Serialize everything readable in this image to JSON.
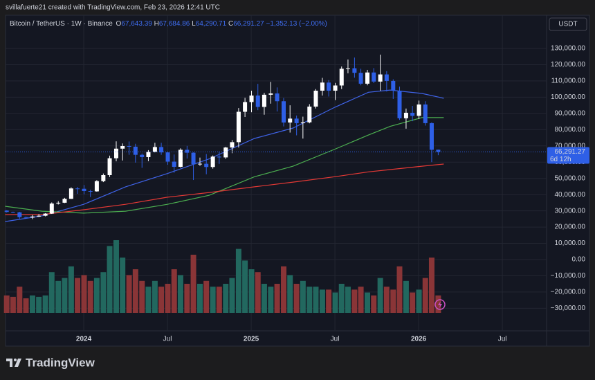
{
  "chart_data": {
    "type": "candlestick",
    "author": "svillafuerte21 created with TradingView.com, Feb 23, 2026 12:41 UTC",
    "symbol": "Bitcoin / TetherUS · 1W · Binance",
    "ohlc_header": {
      "o": "O",
      "open": "67,643.39",
      "h": "H",
      "high": "67,684.86",
      "l": "L",
      "low": "64,290.71",
      "c": "C",
      "close": "66,291.27",
      "change": "−1,352.13 (−2.00%)"
    },
    "currency": "USDT",
    "last_price_label": "66,291.27",
    "countdown": "6d 12h",
    "brand": "TradingView",
    "xlim": [
      2023.533,
      2026.764
    ],
    "xticks": [
      {
        "value": 2024,
        "label": "2024"
      },
      {
        "value": 2024.5,
        "label": "Jul"
      },
      {
        "value": 2025,
        "label": "2025"
      },
      {
        "value": 2025.5,
        "label": "Jul"
      },
      {
        "value": 2026,
        "label": "2026"
      },
      {
        "value": 2026.5,
        "label": "Jul"
      }
    ],
    "ylim": [
      -43900,
      150460
    ],
    "yticks": [
      {
        "value": 130000,
        "label": "130,000.00"
      },
      {
        "value": 120000,
        "label": "120,000.00"
      },
      {
        "value": 110000,
        "label": "110,000.00"
      },
      {
        "value": 100000,
        "label": "100,000.00"
      },
      {
        "value": 90000,
        "label": "90,000.00"
      },
      {
        "value": 80000,
        "label": "80,000.00"
      },
      {
        "value": 70000,
        "label": "70,000.00"
      },
      {
        "value": 60000,
        "label": "60,000.00"
      },
      {
        "value": 50000,
        "label": "50,000.00"
      },
      {
        "value": 40000,
        "label": "40,000.00"
      },
      {
        "value": 30000,
        "label": "30,000.00"
      },
      {
        "value": 20000,
        "label": "20,000.00"
      },
      {
        "value": 10000,
        "label": "10,000.00"
      },
      {
        "value": 0,
        "label": "0.00"
      },
      {
        "value": -10000,
        "label": "−10,000.00"
      },
      {
        "value": -20000,
        "label": "−20,000.00"
      },
      {
        "value": -30000,
        "label": "−30,000.00"
      }
    ],
    "grid": true,
    "up_color": "#ffffff",
    "down_color": "#2e5fe6",
    "volume_up_color": "#22685f",
    "volume_down_color": "#8a3537",
    "volume_ylim": [
      0,
      250000
    ],
    "x": [
      2023.54,
      2023.578,
      2023.617,
      2023.655,
      2023.694,
      2023.732,
      2023.771,
      2023.809,
      2023.848,
      2023.886,
      2023.925,
      2023.963,
      2024.002,
      2024.04,
      2024.078,
      2024.117,
      2024.155,
      2024.194,
      2024.232,
      2024.271,
      2024.309,
      2024.348,
      2024.386,
      2024.425,
      2024.463,
      2024.502,
      2024.54,
      2024.578,
      2024.617,
      2024.655,
      2024.694,
      2024.732,
      2024.771,
      2024.809,
      2024.848,
      2024.886,
      2024.925,
      2024.963,
      2025.002,
      2025.04,
      2025.078,
      2025.117,
      2025.155,
      2025.194,
      2025.232,
      2025.271,
      2025.309,
      2025.348,
      2025.386,
      2025.425,
      2025.463,
      2025.502,
      2025.54,
      2025.578,
      2025.617,
      2025.655,
      2025.694,
      2025.732,
      2025.771,
      2025.809,
      2025.848,
      2025.886,
      2025.925,
      2025.963,
      2026.002,
      2026.04,
      2026.078,
      2026.117
    ],
    "open": [
      30200,
      29300,
      29100,
      26100,
      25900,
      26500,
      27000,
      28300,
      34500,
      35000,
      37400,
      43800,
      43600,
      42200,
      42000,
      48300,
      52000,
      62400,
      68300,
      69900,
      69500,
      64500,
      63100,
      66300,
      69300,
      66000,
      60300,
      57100,
      67600,
      65800,
      58700,
      59000,
      57000,
      63400,
      62900,
      69000,
      72300,
      91000,
      97000,
      101000,
      94000,
      101500,
      102300,
      97500,
      84400,
      86800,
      84000,
      84500,
      94200,
      104000,
      109000,
      104000,
      107200,
      117500,
      117800,
      115000,
      108300,
      115200,
      109600,
      114000,
      110000,
      104000,
      87000,
      90400,
      88500,
      95500,
      84000,
      67643.39
    ],
    "high": [
      30400,
      29500,
      29400,
      26500,
      27400,
      28000,
      28600,
      35200,
      36000,
      38000,
      44500,
      44700,
      45900,
      43000,
      48900,
      53000,
      64000,
      72800,
      71500,
      72700,
      71300,
      65300,
      67400,
      71900,
      71900,
      66500,
      64700,
      68500,
      70000,
      66000,
      62800,
      65000,
      64100,
      66500,
      69400,
      73600,
      93300,
      99600,
      104000,
      108200,
      102700,
      109400,
      106000,
      99500,
      95000,
      88700,
      88000,
      95700,
      105000,
      111900,
      110500,
      108800,
      118900,
      123200,
      124400,
      117500,
      116800,
      117900,
      126200,
      116000,
      111000,
      106500,
      93000,
      94600,
      97900,
      97500,
      84500,
      67684.86
    ],
    "low": [
      29000,
      28700,
      25200,
      25500,
      24900,
      26200,
      26600,
      28100,
      33900,
      34800,
      37300,
      40500,
      40200,
      38500,
      41800,
      47700,
      50800,
      60500,
      61000,
      64500,
      59700,
      56500,
      60600,
      66000,
      64500,
      58400,
      53500,
      56700,
      62200,
      49000,
      57700,
      52500,
      56000,
      58900,
      62000,
      65500,
      69000,
      87800,
      90700,
      92000,
      89200,
      96000,
      91200,
      82000,
      78200,
      76500,
      74500,
      83900,
      93000,
      101000,
      100400,
      98200,
      105000,
      114700,
      112000,
      107300,
      107300,
      108700,
      104000,
      103500,
      98900,
      86000,
      80600,
      85200,
      86500,
      82500,
      60000,
      64290.71
    ],
    "close": [
      29300,
      29100,
      26100,
      25900,
      26500,
      27000,
      28300,
      34500,
      35000,
      37400,
      43800,
      43600,
      42200,
      42000,
      48300,
      52000,
      62400,
      68300,
      69900,
      69500,
      64500,
      63100,
      66300,
      69300,
      66000,
      60300,
      57100,
      67600,
      65800,
      58700,
      59000,
      57000,
      63400,
      62900,
      69000,
      72300,
      91000,
      97000,
      101000,
      94000,
      101500,
      102300,
      97500,
      84400,
      86800,
      84000,
      84500,
      94200,
      104000,
      109000,
      104000,
      107200,
      117500,
      117800,
      115000,
      108300,
      115200,
      109600,
      114000,
      110000,
      104000,
      87000,
      90400,
      88500,
      95500,
      84000,
      67600,
      66291.27
    ],
    "volume": [
      60000,
      55000,
      90000,
      50000,
      60000,
      55000,
      60000,
      140000,
      110000,
      120000,
      160000,
      120000,
      130000,
      110000,
      120000,
      140000,
      230000,
      250000,
      190000,
      130000,
      150000,
      110000,
      90000,
      110000,
      90000,
      100000,
      150000,
      130000,
      100000,
      200000,
      100000,
      110000,
      90000,
      90000,
      100000,
      120000,
      220000,
      180000,
      150000,
      140000,
      100000,
      90000,
      100000,
      160000,
      130000,
      100000,
      110000,
      90000,
      90000,
      80000,
      80000,
      70000,
      100000,
      90000,
      80000,
      90000,
      70000,
      60000,
      120000,
      90000,
      80000,
      160000,
      110000,
      70000,
      80000,
      120000,
      190000,
      60000
    ],
    "series": [
      {
        "color": "#3f63e8",
        "x": [
          2023.53,
          2023.75,
          2024.0,
          2024.25,
          2024.5,
          2024.75,
          2025.02,
          2025.25,
          2025.5,
          2025.7,
          2025.83,
          2026.02,
          2026.15
        ],
        "values": [
          23400,
          26900,
          34000,
          44800,
          53000,
          62000,
          74600,
          81000,
          93800,
          103000,
          104400,
          102300,
          99300
        ]
      },
      {
        "color": "#4caf50",
        "x": [
          2023.53,
          2023.75,
          2024.0,
          2024.25,
          2024.5,
          2024.75,
          2025.02,
          2025.25,
          2025.5,
          2025.7,
          2025.83,
          2026.02,
          2026.15
        ],
        "values": [
          32800,
          29800,
          28600,
          29800,
          34000,
          39600,
          51000,
          57500,
          68000,
          76700,
          82000,
          87400,
          87400
        ]
      },
      {
        "color": "#e53935",
        "x": [
          2023.53,
          2023.75,
          2024.0,
          2024.25,
          2024.5,
          2024.75,
          2025.02,
          2025.25,
          2025.5,
          2025.7,
          2025.83,
          2026.02,
          2026.15
        ],
        "values": [
          27700,
          27700,
          30700,
          34000,
          38400,
          41300,
          44800,
          47700,
          51000,
          54000,
          55400,
          57500,
          58800
        ]
      }
    ]
  }
}
